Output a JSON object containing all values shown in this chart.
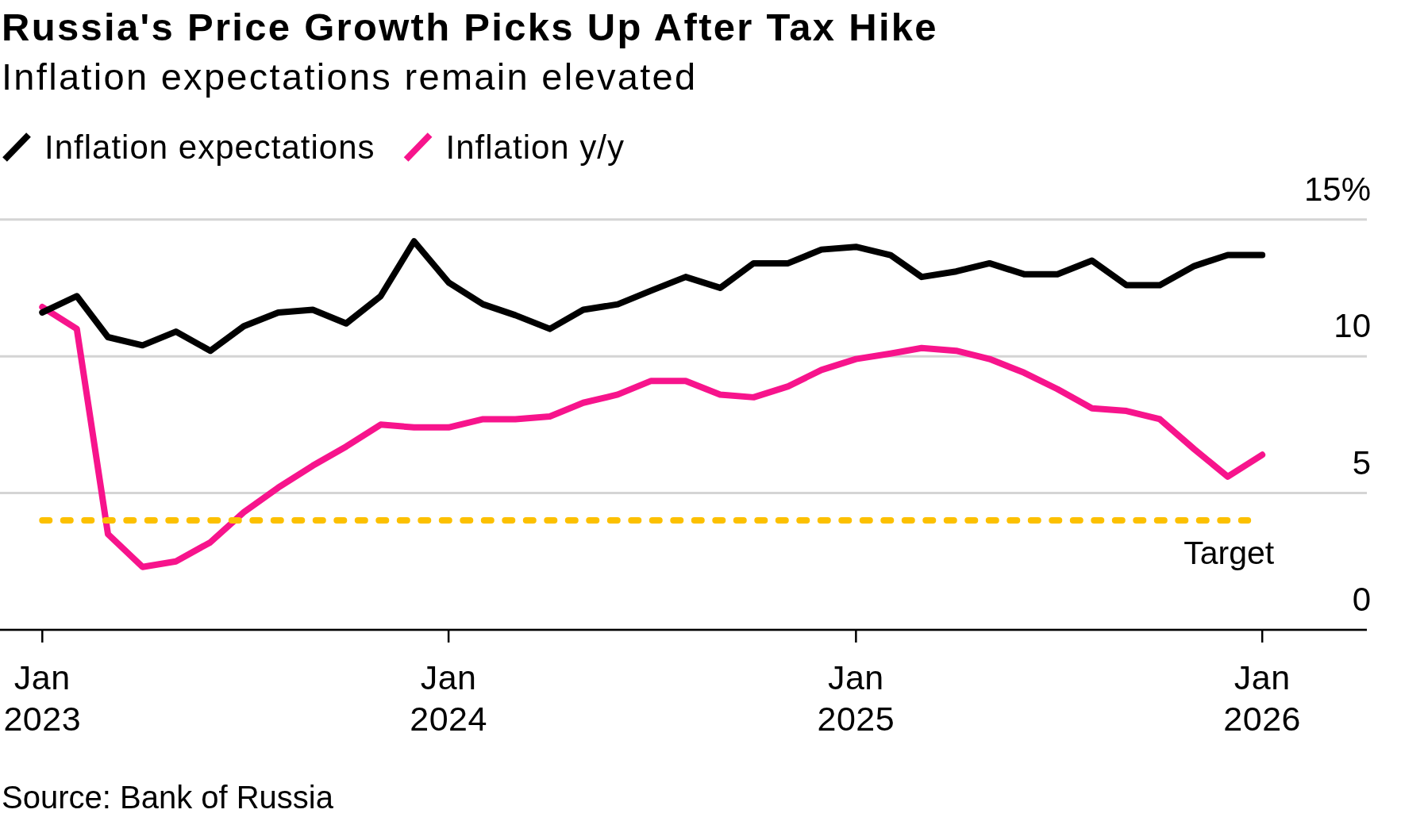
{
  "chart_data": {
    "type": "line",
    "title": "Russia's Price Growth Picks Up After Tax Hike",
    "subtitle": "Inflation expectations remain elevated",
    "x": [
      "2023-01",
      "2023-02",
      "2023-03",
      "2023-04",
      "2023-05",
      "2023-06",
      "2023-07",
      "2023-08",
      "2023-09",
      "2023-10",
      "2023-11",
      "2023-12",
      "2024-01",
      "2024-02",
      "2024-03",
      "2024-04",
      "2024-05",
      "2024-06",
      "2024-07",
      "2024-08",
      "2024-09",
      "2024-10",
      "2024-11",
      "2024-12",
      "2025-01",
      "2025-02",
      "2025-03",
      "2025-04",
      "2025-05",
      "2025-06",
      "2025-07",
      "2025-08",
      "2025-09",
      "2025-10",
      "2025-11",
      "2025-12",
      "2026-01"
    ],
    "series": [
      {
        "name": "Inflation expectations",
        "color": "#000000",
        "values": [
          11.6,
          12.2,
          10.7,
          10.4,
          10.9,
          10.2,
          11.1,
          11.6,
          11.7,
          11.2,
          12.2,
          14.2,
          12.7,
          11.9,
          11.5,
          11.0,
          11.7,
          11.9,
          12.4,
          12.9,
          12.5,
          13.4,
          13.4,
          13.9,
          14.0,
          13.7,
          12.9,
          13.1,
          13.4,
          13.0,
          13.0,
          13.5,
          12.6,
          12.6,
          13.3,
          13.7,
          13.7
        ]
      },
      {
        "name": "Inflation y/y",
        "color": "#f7148c",
        "values": [
          11.8,
          11.0,
          3.5,
          2.3,
          2.5,
          3.2,
          4.3,
          5.2,
          6.0,
          6.7,
          7.5,
          7.4,
          7.4,
          7.7,
          7.7,
          7.8,
          8.3,
          8.6,
          9.1,
          9.1,
          8.6,
          8.5,
          8.9,
          9.5,
          9.9,
          10.1,
          10.3,
          10.2,
          9.9,
          9.4,
          8.8,
          8.1,
          8.0,
          7.7,
          6.6,
          5.6,
          6.4
        ]
      }
    ],
    "xlim": [
      "2022-11-24",
      "2026-04-05"
    ],
    "xticks": [
      {
        "value": "2023-01",
        "label": "Jan 2023"
      },
      {
        "value": "2024-01",
        "label": "Jan 2024"
      },
      {
        "value": "2025-01",
        "label": "Jan 2025"
      },
      {
        "value": "2026-01",
        "label": "Jan 2026"
      }
    ],
    "ylim": [
      0,
      15
    ],
    "yticks": [
      0,
      5,
      10,
      {
        "value": 15,
        "label": "15%"
      }
    ],
    "grid": "y",
    "legend": "top left",
    "ref_lines": [
      {
        "axis": "y",
        "value": 4,
        "label": "Target",
        "color": "#fcc000",
        "line_style": "dashed"
      }
    ],
    "annotations": [
      "Source: Bank of Russia"
    ]
  }
}
